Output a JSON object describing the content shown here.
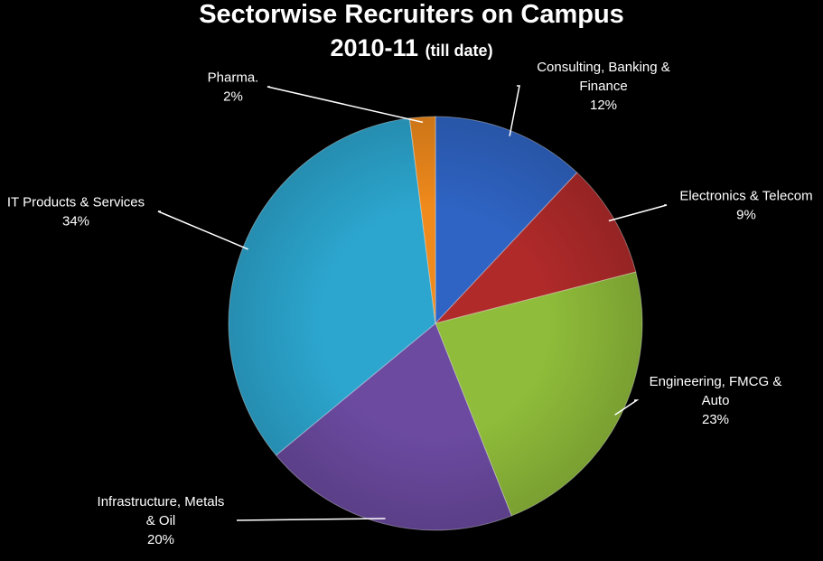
{
  "chart_data": {
    "type": "pie",
    "title": "Sectorwise Recruiters on Campus",
    "subtitle_main": "2010-11",
    "subtitle_note": "(till date)",
    "slices": [
      {
        "label": [
          "Consulting, Banking  &",
          "Finance"
        ],
        "pct_label": "12%",
        "value": 12,
        "color": "#2f64c4"
      },
      {
        "label": [
          "Electronics & Telecom"
        ],
        "pct_label": "9%",
        "value": 9,
        "color": "#b02a2a"
      },
      {
        "label": [
          "Engineering, FMCG &",
          "Auto"
        ],
        "pct_label": "23%",
        "value": 23,
        "color": "#8fbc3a"
      },
      {
        "label": [
          "Infrastructure, Metals",
          "& Oil"
        ],
        "pct_label": "20%",
        "value": 20,
        "color": "#6b4aa0"
      },
      {
        "label": [
          "IT Products & Services"
        ],
        "pct_label": "34%",
        "value": 34,
        "color": "#2ca6cf"
      },
      {
        "label": [
          "Pharma."
        ],
        "pct_label": "2%",
        "value": 2,
        "color": "#f08a1c"
      }
    ]
  }
}
